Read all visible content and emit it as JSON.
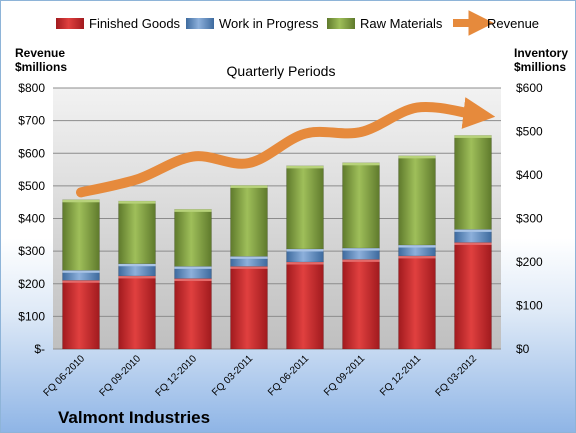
{
  "chart_data": {
    "type": "bar",
    "stacked": true,
    "subtitle": "Quarterly Periods",
    "company": "Valmont Industries",
    "left_axis_title": [
      "Revenue",
      "$millions"
    ],
    "right_axis_title": [
      "Inventory",
      "$millions"
    ],
    "categories": [
      "FQ 06-2010",
      "FQ 09-2010",
      "FQ 12-2010",
      "FQ 03-2011",
      "FQ 06-2011",
      "FQ 09-2011",
      "FQ 12-2011",
      "FQ 03-2012"
    ],
    "left_ylim": [
      0,
      800
    ],
    "left_ticks": [
      "$-",
      "$100",
      "$200",
      "$300",
      "$400",
      "$500",
      "$600",
      "$700",
      "$800"
    ],
    "right_ylim": [
      0,
      600
    ],
    "right_ticks": [
      "$0",
      "$100",
      "$200",
      "$300",
      "$400",
      "$500",
      "$600"
    ],
    "grid": true,
    "legend_position": "top",
    "series": [
      {
        "name": "Finished Goods",
        "axis": "right",
        "kind": "bar",
        "color": "#c0282d",
        "values": [
          158,
          168,
          162,
          190,
          200,
          206,
          214,
          245
        ]
      },
      {
        "name": "Work in Progress",
        "axis": "right",
        "kind": "bar",
        "color": "#4f81bd",
        "values": [
          23,
          28,
          28,
          23,
          30,
          26,
          25,
          30
        ]
      },
      {
        "name": "Raw Materials",
        "axis": "right",
        "kind": "bar",
        "color": "#77933c",
        "values": [
          162,
          144,
          131,
          163,
          191,
          196,
          205,
          216
        ]
      },
      {
        "name": "Revenue",
        "axis": "left",
        "kind": "line",
        "color": "#e68a3c",
        "values": [
          480,
          520,
          590,
          570,
          660,
          665,
          740,
          720
        ]
      }
    ]
  }
}
